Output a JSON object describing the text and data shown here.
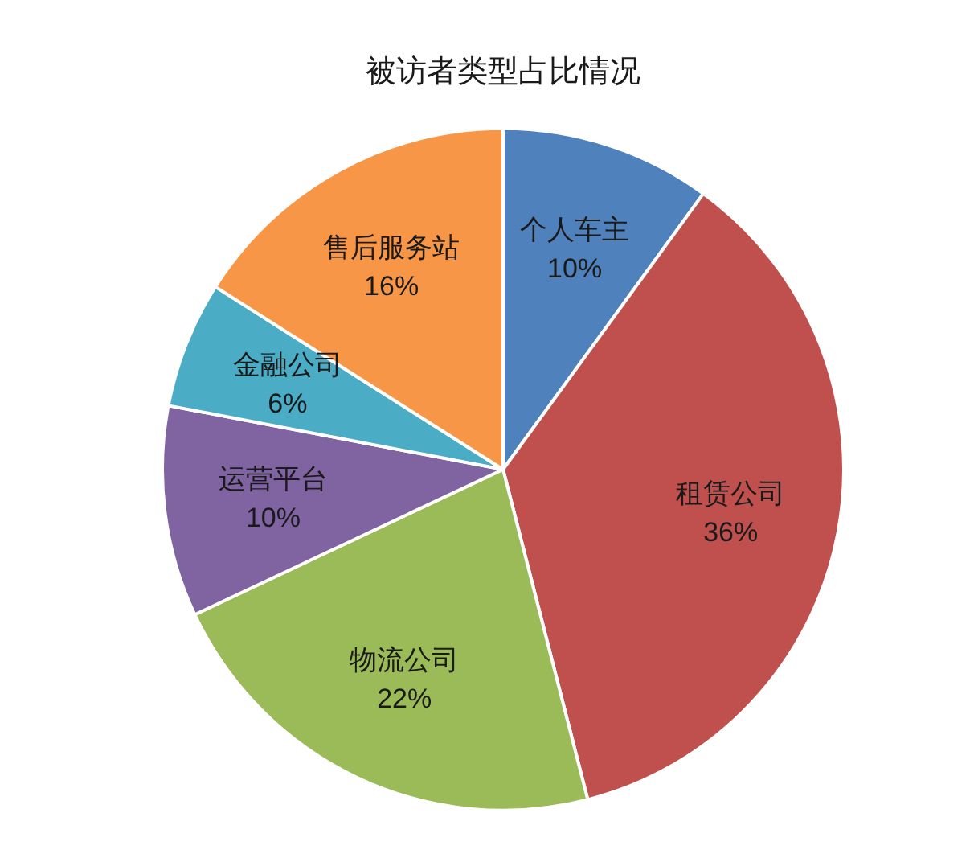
{
  "chart_data": {
    "type": "pie",
    "title": "被访者类型占比情况",
    "categories": [
      "个人车主",
      "租赁公司",
      "物流公司",
      "运营平台",
      "金融公司",
      "售后服务站"
    ],
    "values": [
      10,
      36,
      22,
      10,
      6,
      16
    ],
    "colors": [
      "#4f81bd",
      "#c0504d",
      "#9bbb59",
      "#8064a2",
      "#4bacc6",
      "#f79646"
    ],
    "value_labels": [
      "10%",
      "36%",
      "22%",
      "10%",
      "6%",
      "16%"
    ],
    "legend": false
  }
}
